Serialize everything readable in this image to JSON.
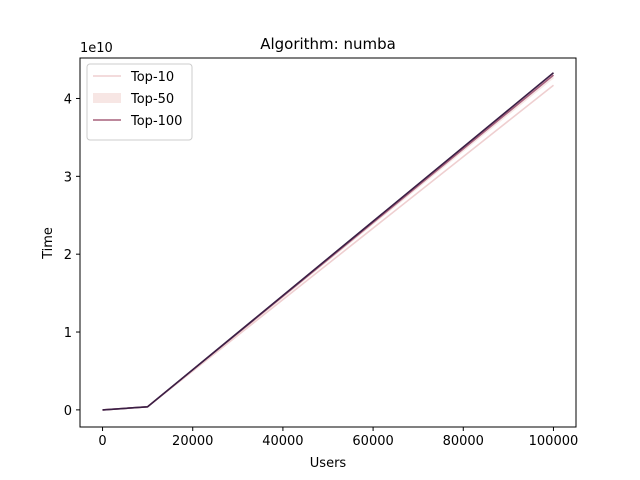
{
  "chart_data": {
    "type": "line",
    "title": "Algorithm: numba",
    "xlabel": "Users",
    "ylabel": "Time",
    "y_offset_text": "1e10",
    "xlim": [
      -5000,
      105000
    ],
    "ylim": [
      -0.22,
      4.52
    ],
    "x_ticks": [
      0,
      20000,
      40000,
      60000,
      80000,
      100000
    ],
    "x_tick_labels": [
      "0",
      "20000",
      "40000",
      "60000",
      "80000",
      "100000"
    ],
    "y_ticks": [
      0,
      1,
      2,
      3,
      4
    ],
    "y_tick_labels": [
      "0",
      "1",
      "2",
      "3",
      "4"
    ],
    "grid": false,
    "legend_position": "upper-left",
    "series": [
      {
        "name": "Top-10",
        "color": "#efcfd0",
        "x": [
          0,
          10000,
          100000
        ],
        "y": [
          0,
          0.04,
          4.17
        ],
        "legend_style": "line"
      },
      {
        "name": "Top-50",
        "color": "#f7e6e4",
        "x": [
          0,
          10000,
          100000
        ],
        "y": [
          0,
          0.04,
          4.27
        ],
        "legend_style": "patch"
      },
      {
        "name": "Top-100",
        "color": "#a7607c",
        "x": [
          0,
          10000,
          100000
        ],
        "y": [
          0,
          0.04,
          4.3
        ],
        "legend_style": "line"
      },
      {
        "name": "",
        "color": "#3a1f45",
        "x": [
          0,
          10000,
          100000
        ],
        "y": [
          0,
          0.04,
          4.33
        ],
        "legend_style": "none"
      }
    ]
  }
}
